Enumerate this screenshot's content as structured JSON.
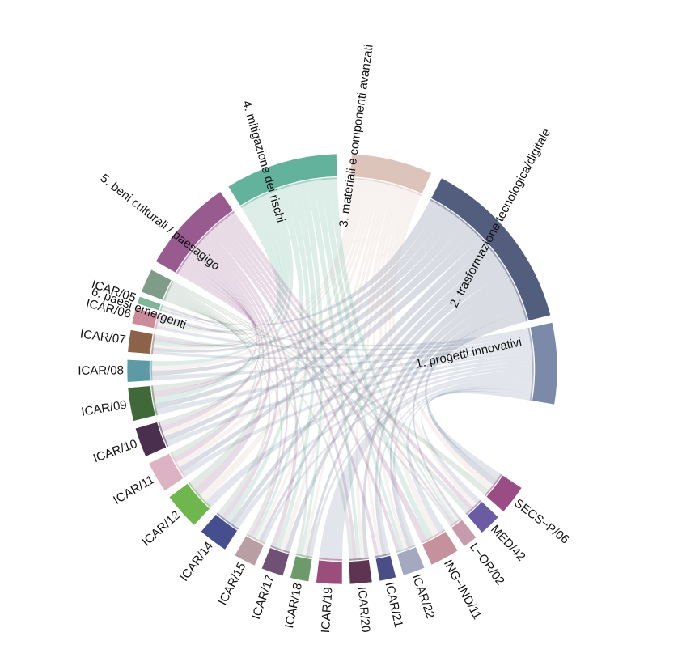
{
  "diagram": {
    "type": "chord",
    "segments": [
      {
        "id": "p1",
        "label": "1. progetti innovativi",
        "color": "#7a8aa8",
        "kind": "theme"
      },
      {
        "id": "p2",
        "label": "2. trasformazione tecnologica/digitale",
        "color": "#535e7f",
        "kind": "theme"
      },
      {
        "id": "p3",
        "label": "3. materiali e componenti avanzati",
        "color": "#dcc4bb",
        "kind": "theme"
      },
      {
        "id": "p4",
        "label": "4. mitigazione dei rischi",
        "color": "#63b39c",
        "kind": "theme"
      },
      {
        "id": "p5",
        "label": "5. beni culturali / paesagigo",
        "color": "#985a8f",
        "kind": "theme"
      },
      {
        "id": "p6",
        "label": "6. paesi emergenti",
        "color": "#7e9c88",
        "kind": "theme"
      },
      {
        "id": "icar05",
        "label": "ICAR/05",
        "color": "#7fb79a",
        "kind": "sector"
      },
      {
        "id": "icar06",
        "label": "ICAR/06",
        "color": "#cc8b9a",
        "kind": "sector"
      },
      {
        "id": "icar07",
        "label": "ICAR/07",
        "color": "#8c6249",
        "kind": "sector"
      },
      {
        "id": "icar08",
        "label": "ICAR/08",
        "color": "#5d9aa6",
        "kind": "sector"
      },
      {
        "id": "icar09",
        "label": "ICAR/09",
        "color": "#3f6939",
        "kind": "sector"
      },
      {
        "id": "icar10",
        "label": "ICAR/10",
        "color": "#4b2f4f",
        "kind": "sector"
      },
      {
        "id": "icar11",
        "label": "ICAR/11",
        "color": "#dcb3c2",
        "kind": "sector"
      },
      {
        "id": "icar12",
        "label": "ICAR/12",
        "color": "#70b64f",
        "kind": "sector"
      },
      {
        "id": "icar14",
        "label": "ICAR/14",
        "color": "#474e8f",
        "kind": "sector"
      },
      {
        "id": "icar15",
        "label": "ICAR/15",
        "color": "#b89fa4",
        "kind": "sector"
      },
      {
        "id": "icar17",
        "label": "ICAR/17",
        "color": "#6f5175",
        "kind": "sector"
      },
      {
        "id": "icar18",
        "label": "ICAR/18",
        "color": "#6d9a6b",
        "kind": "sector"
      },
      {
        "id": "icar19",
        "label": "ICAR/19",
        "color": "#9b4d7c",
        "kind": "sector"
      },
      {
        "id": "icar20",
        "label": "ICAR/20",
        "color": "#5e3550",
        "kind": "sector"
      },
      {
        "id": "icar21",
        "label": "ICAR/21",
        "color": "#4b4d86",
        "kind": "sector"
      },
      {
        "id": "icar22",
        "label": "ICAR/22",
        "color": "#a4a9bf",
        "kind": "sector"
      },
      {
        "id": "ingind11",
        "label": "ING−IND/11",
        "color": "#c4919c",
        "kind": "sector"
      },
      {
        "id": "lor02",
        "label": "L−OR/02",
        "color": "#c69cad",
        "kind": "sector"
      },
      {
        "id": "med42",
        "label": "MED/42",
        "color": "#6b5ba3",
        "kind": "sector"
      },
      {
        "id": "secsp06",
        "label": "SECS−P/06",
        "color": "#9a4c84",
        "kind": "sector"
      }
    ]
  }
}
